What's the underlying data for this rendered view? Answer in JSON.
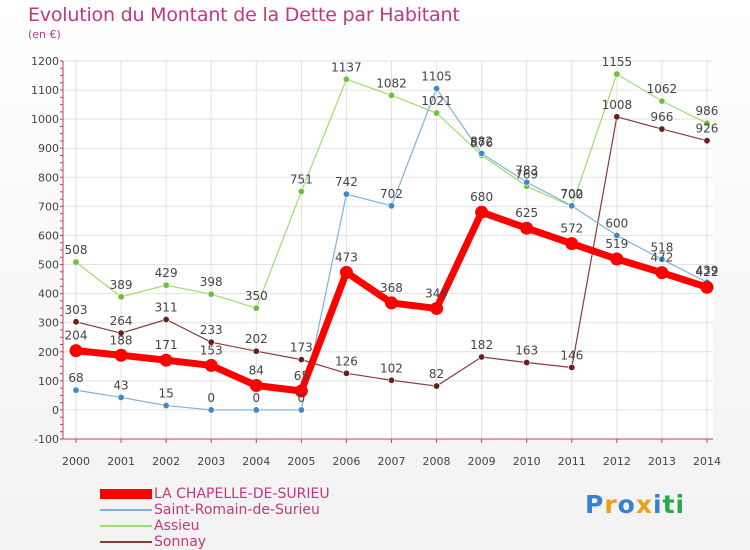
{
  "header": {
    "title": "Evolution du Montant de la Dette par Habitant",
    "subtitle": "(en €)"
  },
  "logo": {
    "text": "Proxiti",
    "colors": [
      "#3a7fd5",
      "#e8a21a",
      "#3a7fd5",
      "#e8a21a",
      "#3a7fd5",
      "#2aa84a",
      "#2aa84a"
    ]
  },
  "chart_data": {
    "type": "line",
    "x": [
      "2000",
      "2001",
      "2002",
      "2003",
      "2004",
      "2005",
      "2006",
      "2007",
      "2008",
      "2009",
      "2010",
      "2011",
      "2012",
      "2013",
      "2014"
    ],
    "ylim": [
      -100,
      1200
    ],
    "yticks": [
      "-100",
      "0",
      "100",
      "200",
      "300",
      "400",
      "500",
      "600",
      "700",
      "800",
      "900",
      "1000",
      "1100",
      "1200"
    ],
    "grid": true,
    "legend_position": "bottom-left",
    "series": [
      {
        "name": "LA CHAPELLE-DE-SURIEU",
        "color": "#ff0000",
        "marker": "#ff0000",
        "width": 7,
        "values": [
          204,
          188,
          171,
          153,
          84,
          65,
          473,
          368,
          349,
          680,
          625,
          572,
          519,
          472,
          422
        ],
        "labels": [
          "204",
          "188",
          "171",
          "153",
          "84",
          "65",
          "473",
          "368",
          "349",
          "680",
          "625",
          "572",
          "519",
          "472",
          "422"
        ]
      },
      {
        "name": "Saint-Romain-de-Surieu",
        "color": "#7fb1d9",
        "marker": "#3f88d0",
        "width": 1.2,
        "values": [
          68,
          43,
          15,
          0,
          0,
          0,
          742,
          702,
          1105,
          882,
          783,
          702,
          600,
          518,
          439
        ],
        "labels": [
          "68",
          "43",
          "15",
          "0",
          "0",
          "0",
          "742",
          "702",
          "1105",
          "882",
          "783",
          "702",
          "600",
          "518",
          "439"
        ]
      },
      {
        "name": "Assieu",
        "color": "#9ddc6e",
        "marker": "#6cc23a",
        "width": 1.2,
        "values": [
          508,
          389,
          429,
          398,
          350,
          751,
          1137,
          1082,
          1021,
          876,
          769,
          700,
          1155,
          1062,
          986
        ],
        "labels": [
          "508",
          "389",
          "429",
          "398",
          "350",
          "751",
          "1137",
          "1082",
          "1021",
          "876",
          "769",
          "700",
          "1155",
          "1062",
          "986"
        ]
      },
      {
        "name": "Sonnay",
        "color": "#8a3a3a",
        "marker": "#6a1f1f",
        "width": 1.2,
        "values": [
          303,
          264,
          311,
          233,
          202,
          173,
          126,
          102,
          82,
          182,
          163,
          146,
          1008,
          966,
          926
        ],
        "labels": [
          "303",
          "264",
          "311",
          "233",
          "202",
          "173",
          "126",
          "102",
          "82",
          "182",
          "163",
          "146",
          "1008",
          "966",
          "926"
        ]
      }
    ]
  }
}
